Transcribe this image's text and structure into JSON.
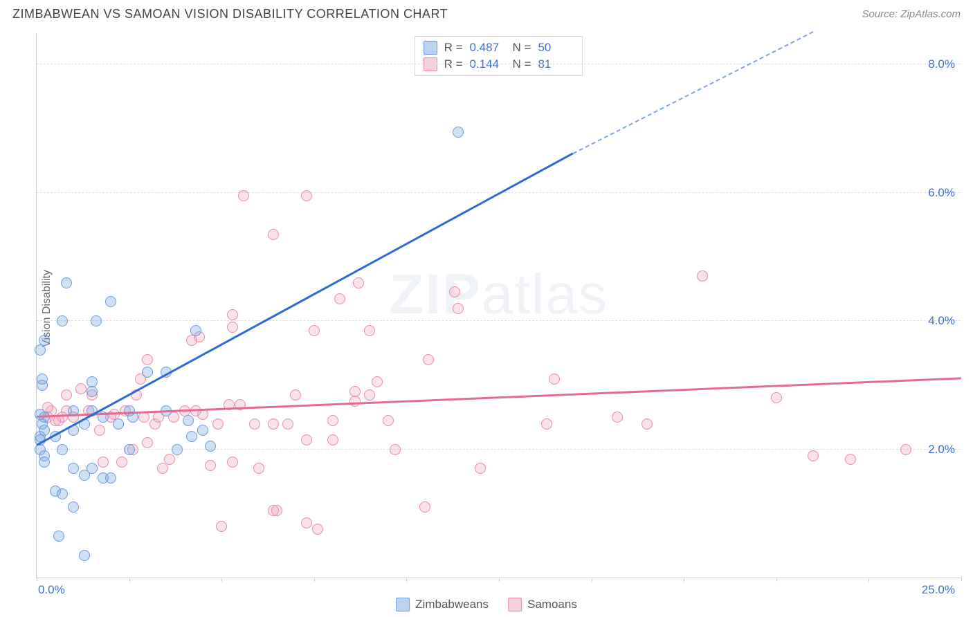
{
  "header": {
    "title": "ZIMBABWEAN VS SAMOAN VISION DISABILITY CORRELATION CHART",
    "source": "Source: ZipAtlas.com"
  },
  "chart": {
    "type": "scatter",
    "ylabel": "Vision Disability",
    "watermark_bold": "ZIP",
    "watermark_rest": "atlas",
    "xlim": [
      0,
      25
    ],
    "ylim": [
      0,
      8.5
    ],
    "x_tick_positions": [
      0,
      2.5,
      5,
      7.5,
      10,
      12.5,
      15,
      17.5,
      20,
      22.5,
      25
    ],
    "x_tick_labels_shown": {
      "0": "0.0%",
      "25": "25.0%"
    },
    "y_gridlines": [
      2,
      4,
      6,
      8
    ],
    "y_tick_labels": {
      "2": "2.0%",
      "4": "4.0%",
      "6": "6.0%",
      "8": "8.0%"
    },
    "background_color": "#ffffff",
    "grid_color": "#e0e0e0",
    "axis_color": "#d0d0d0",
    "tick_label_color": "#3b6fd4",
    "tick_fontsize": 17,
    "point_radius": 8,
    "series": {
      "zimbabweans": {
        "label": "Zimbabweans",
        "color_fill": "rgba(120,165,225,0.35)",
        "color_stroke": "#6a9be0",
        "regression_color": "#2d6ad4",
        "regression_dash_color": "#7aa5e0",
        "R": "0.487",
        "N": "50",
        "regression": {
          "x0": 0,
          "y0": 2.05,
          "x1": 14.5,
          "y1": 6.6,
          "dash_x1": 21.0,
          "dash_y1": 8.5
        },
        "points": [
          [
            0.1,
            2.0
          ],
          [
            0.1,
            2.2
          ],
          [
            0.15,
            2.4
          ],
          [
            0.1,
            2.55
          ],
          [
            0.15,
            3.1
          ],
          [
            0.2,
            2.5
          ],
          [
            0.2,
            2.3
          ],
          [
            0.1,
            2.15
          ],
          [
            0.2,
            1.9
          ],
          [
            0.2,
            1.8
          ],
          [
            0.15,
            3.0
          ],
          [
            0.2,
            3.7
          ],
          [
            0.1,
            3.55
          ],
          [
            0.8,
            4.6
          ],
          [
            0.7,
            4.0
          ],
          [
            2.0,
            4.3
          ],
          [
            1.6,
            4.0
          ],
          [
            0.5,
            1.35
          ],
          [
            0.7,
            1.3
          ],
          [
            1.0,
            1.1
          ],
          [
            1.5,
            1.7
          ],
          [
            1.0,
            1.7
          ],
          [
            1.3,
            1.6
          ],
          [
            1.8,
            1.55
          ],
          [
            2.0,
            1.55
          ],
          [
            2.5,
            2.0
          ],
          [
            3.8,
            2.0
          ],
          [
            0.6,
            0.65
          ],
          [
            1.3,
            0.35
          ],
          [
            0.7,
            2.0
          ],
          [
            0.5,
            2.2
          ],
          [
            1.0,
            2.3
          ],
          [
            1.3,
            2.4
          ],
          [
            1.5,
            2.6
          ],
          [
            1.8,
            2.5
          ],
          [
            1.0,
            2.6
          ],
          [
            1.5,
            2.9
          ],
          [
            1.5,
            3.05
          ],
          [
            2.6,
            2.5
          ],
          [
            2.5,
            2.6
          ],
          [
            2.2,
            2.4
          ],
          [
            3.5,
            2.6
          ],
          [
            3.0,
            3.2
          ],
          [
            3.5,
            3.2
          ],
          [
            4.3,
            3.85
          ],
          [
            4.1,
            2.45
          ],
          [
            4.2,
            2.2
          ],
          [
            11.4,
            6.95
          ],
          [
            4.7,
            2.05
          ],
          [
            4.5,
            2.3
          ]
        ]
      },
      "samoans": {
        "label": "Samoans",
        "color_fill": "rgba(240,160,185,0.30)",
        "color_stroke": "#e88aa8",
        "regression_color": "#e56a93",
        "R": "0.144",
        "N": "81",
        "regression": {
          "x0": 0,
          "y0": 2.5,
          "x1": 25,
          "y1": 3.1
        },
        "points": [
          [
            0.3,
            2.5
          ],
          [
            0.4,
            2.6
          ],
          [
            0.5,
            2.45
          ],
          [
            0.3,
            2.65
          ],
          [
            0.7,
            2.5
          ],
          [
            0.8,
            2.6
          ],
          [
            1.0,
            2.5
          ],
          [
            0.6,
            2.45
          ],
          [
            1.4,
            2.6
          ],
          [
            1.5,
            2.85
          ],
          [
            1.7,
            2.3
          ],
          [
            2.0,
            2.5
          ],
          [
            2.1,
            2.55
          ],
          [
            2.4,
            2.6
          ],
          [
            2.9,
            2.5
          ],
          [
            2.7,
            2.85
          ],
          [
            3.2,
            2.4
          ],
          [
            3.3,
            2.5
          ],
          [
            3.7,
            2.5
          ],
          [
            4.0,
            2.6
          ],
          [
            4.3,
            2.6
          ],
          [
            4.5,
            2.55
          ],
          [
            1.8,
            1.8
          ],
          [
            2.3,
            1.8
          ],
          [
            3.6,
            1.85
          ],
          [
            2.6,
            2.0
          ],
          [
            3.0,
            2.1
          ],
          [
            3.4,
            1.7
          ],
          [
            4.7,
            1.75
          ],
          [
            5.3,
            1.8
          ],
          [
            6.0,
            1.7
          ],
          [
            7.3,
            2.15
          ],
          [
            6.4,
            1.05
          ],
          [
            6.5,
            1.05
          ],
          [
            7.3,
            0.85
          ],
          [
            7.6,
            0.75
          ],
          [
            5.0,
            0.8
          ],
          [
            10.5,
            1.1
          ],
          [
            12.0,
            1.7
          ],
          [
            4.9,
            2.4
          ],
          [
            5.2,
            2.7
          ],
          [
            5.5,
            2.7
          ],
          [
            6.4,
            2.4
          ],
          [
            6.8,
            2.4
          ],
          [
            8.0,
            2.45
          ],
          [
            8.6,
            2.9
          ],
          [
            8.6,
            2.75
          ],
          [
            9.0,
            2.85
          ],
          [
            9.2,
            3.05
          ],
          [
            3.0,
            3.4
          ],
          [
            4.4,
            3.75
          ],
          [
            4.2,
            3.7
          ],
          [
            5.3,
            3.9
          ],
          [
            5.3,
            4.1
          ],
          [
            7.5,
            3.85
          ],
          [
            9.0,
            3.85
          ],
          [
            10.6,
            3.4
          ],
          [
            11.3,
            4.45
          ],
          [
            11.4,
            4.2
          ],
          [
            8.2,
            4.35
          ],
          [
            5.6,
            5.95
          ],
          [
            7.3,
            5.95
          ],
          [
            6.4,
            5.35
          ],
          [
            8.7,
            4.6
          ],
          [
            14.0,
            3.1
          ],
          [
            15.7,
            2.5
          ],
          [
            16.5,
            2.4
          ],
          [
            13.8,
            2.4
          ],
          [
            18.0,
            4.7
          ],
          [
            20.0,
            2.8
          ],
          [
            21.0,
            1.9
          ],
          [
            22.0,
            1.85
          ],
          [
            23.5,
            2.0
          ],
          [
            0.8,
            2.85
          ],
          [
            2.8,
            3.1
          ],
          [
            5.9,
            2.4
          ],
          [
            7.0,
            2.85
          ],
          [
            9.5,
            2.45
          ],
          [
            9.7,
            2.0
          ],
          [
            8.0,
            2.15
          ],
          [
            1.2,
            2.95
          ]
        ]
      }
    },
    "bottom_legend": [
      {
        "swatch": "blue",
        "label": "Zimbabweans"
      },
      {
        "swatch": "pink",
        "label": "Samoans"
      }
    ]
  }
}
